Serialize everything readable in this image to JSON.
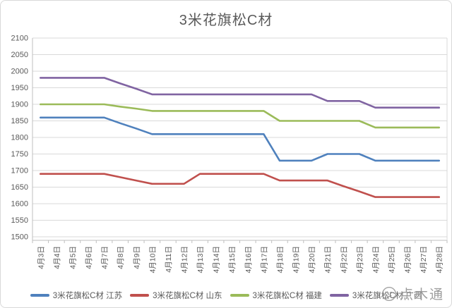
{
  "chart_data": {
    "type": "line",
    "title": "3米花旗松C材",
    "categories": [
      "4月3日",
      "4月4日",
      "4月5日",
      "4月6日",
      "4月7日",
      "4月8日",
      "4月9日",
      "4月10日",
      "4月11日",
      "4月12日",
      "4月13日",
      "4月14日",
      "4月15日",
      "4月16日",
      "4月17日",
      "4月18日",
      "4月19日",
      "4月20日",
      "4月21日",
      "4月22日",
      "4月23日",
      "4月24日",
      "4月25日",
      "4月26日",
      "4月27日",
      "4月28日"
    ],
    "series": [
      {
        "name": "3米花旗松C材 江苏",
        "color": "#4F81BD",
        "values": [
          1860,
          1860,
          1860,
          1860,
          1860,
          1843,
          1827,
          1810,
          1810,
          1810,
          1810,
          1810,
          1810,
          1810,
          1810,
          1730,
          1730,
          1730,
          1750,
          1750,
          1750,
          1730,
          1730,
          1730,
          1730,
          1730
        ]
      },
      {
        "name": "3米花旗松C材 山东",
        "color": "#C0504D",
        "values": [
          1690,
          1690,
          1690,
          1690,
          1690,
          1680,
          1670,
          1660,
          1660,
          1660,
          1690,
          1690,
          1690,
          1690,
          1690,
          1670,
          1670,
          1670,
          1670,
          1653,
          1637,
          1620,
          1620,
          1620,
          1620,
          1620
        ]
      },
      {
        "name": "3米花旗松C材 福建",
        "color": "#9BBB59",
        "values": [
          1900,
          1900,
          1900,
          1900,
          1900,
          1893,
          1887,
          1880,
          1880,
          1880,
          1880,
          1880,
          1880,
          1880,
          1880,
          1850,
          1850,
          1850,
          1850,
          1850,
          1850,
          1830,
          1830,
          1830,
          1830,
          1830
        ]
      },
      {
        "name": "3米花旗松C材 广西",
        "color": "#8064A2",
        "values": [
          1980,
          1980,
          1980,
          1980,
          1980,
          1963,
          1947,
          1930,
          1930,
          1930,
          1930,
          1930,
          1930,
          1930,
          1930,
          1930,
          1930,
          1930,
          1910,
          1910,
          1910,
          1890,
          1890,
          1890,
          1890,
          1890
        ]
      }
    ],
    "ylim": [
      1500,
      2100
    ],
    "ytick_step": 50,
    "grid": true,
    "legend_position": "bottom",
    "gridline_color": "#D9D9D9",
    "axis_color": "#BFBFBF",
    "text_color": "#595959"
  },
  "watermark": {
    "text": "点木通"
  }
}
